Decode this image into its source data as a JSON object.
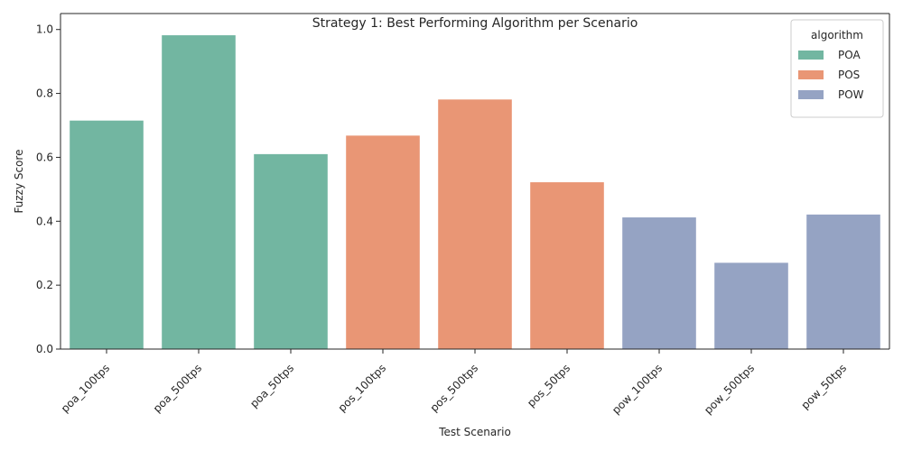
{
  "chart_data": {
    "type": "bar",
    "title": "Strategy 1: Best Performing Algorithm per Scenario",
    "xlabel": "Test Scenario",
    "ylabel": "Fuzzy Score",
    "ylim": [
      0,
      1.05
    ],
    "yticks": [
      "0.0",
      "0.2",
      "0.4",
      "0.6",
      "0.8",
      "1.0"
    ],
    "ytick_values": [
      0,
      0.2,
      0.4,
      0.6,
      0.8,
      1.0
    ],
    "categories": [
      "poa_100tps",
      "poa_500tps",
      "poa_50tps",
      "pos_100tps",
      "pos_500tps",
      "pos_50tps",
      "pow_100tps",
      "pow_500tps",
      "pow_50tps"
    ],
    "values": [
      0.715,
      0.982,
      0.61,
      0.668,
      0.781,
      0.522,
      0.412,
      0.27,
      0.421
    ],
    "hue": [
      "POA",
      "POA",
      "POA",
      "POS",
      "POS",
      "POS",
      "POW",
      "POW",
      "POW"
    ],
    "grid": false,
    "legend": {
      "title": "algorithm",
      "placement": "top-right",
      "entries": [
        {
          "name": "POA",
          "color": "#72b6a1"
        },
        {
          "name": "POS",
          "color": "#e99675"
        },
        {
          "name": "POW",
          "color": "#95a3c3"
        }
      ]
    }
  }
}
